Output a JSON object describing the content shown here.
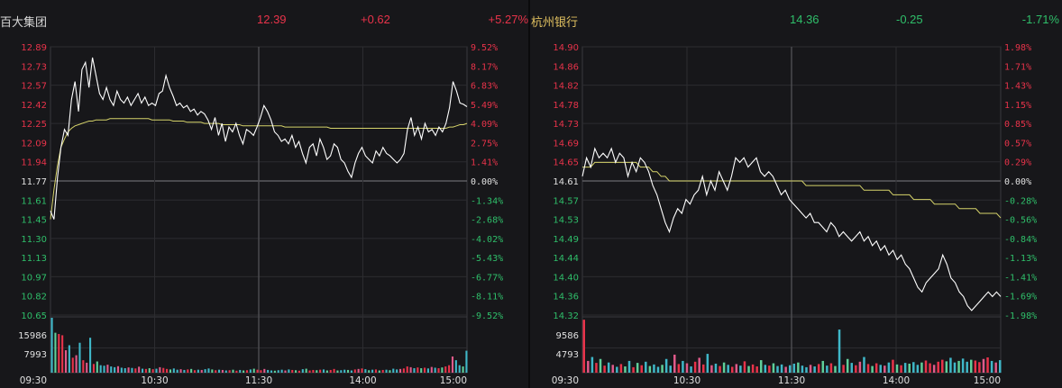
{
  "theme": {
    "up": "#e8334a",
    "down": "#2fbf6a",
    "flat": "#e0e0e0",
    "price_line": "#ffffff",
    "avg_line": "#d6d36a",
    "grid": "#2c2c30",
    "axis": "#3a3a3e"
  },
  "stocks": [
    {
      "name": "百大集团",
      "price": "12.39",
      "change": "+0.62",
      "change_pct": "+5.27%",
      "direction": "up"
    },
    {
      "name": "杭州银行",
      "price": "14.36",
      "change": "-0.25",
      "change_pct": "-1.71%",
      "direction": "down"
    }
  ],
  "chart_data": [
    {
      "type": "line",
      "subtype": "intraday-timeshare",
      "name": "百大集团",
      "prev_close": 11.77,
      "ylim": [
        10.65,
        12.89
      ],
      "y_ticks": [
        "12.89",
        "12.73",
        "12.57",
        "12.42",
        "12.25",
        "12.09",
        "11.94",
        "11.77",
        "11.61",
        "11.45",
        "11.30",
        "11.13",
        "10.97",
        "10.82",
        "10.65"
      ],
      "pct_ticks": [
        "9.52%",
        "8.17%",
        "6.83%",
        "5.49%",
        "4.09%",
        "2.75%",
        "1.41%",
        "0.00%",
        "-1.34%",
        "-2.68%",
        "-4.02%",
        "-5.43%",
        "-6.77%",
        "-8.11%",
        "-9.52%"
      ],
      "x_ticks": [
        "09:30",
        "10:30",
        "11:30",
        "14:00",
        "15:00"
      ],
      "volume_ticks": [
        "15986",
        "7993"
      ],
      "volume_max": 22000,
      "price_series": [
        11.52,
        11.45,
        11.8,
        12.05,
        12.2,
        12.15,
        12.45,
        12.6,
        12.35,
        12.7,
        12.76,
        12.55,
        12.8,
        12.65,
        12.5,
        12.45,
        12.55,
        12.45,
        12.4,
        12.52,
        12.45,
        12.42,
        12.47,
        12.4,
        12.45,
        12.5,
        12.42,
        12.47,
        12.4,
        12.42,
        12.4,
        12.5,
        12.52,
        12.65,
        12.55,
        12.48,
        12.4,
        12.42,
        12.38,
        12.4,
        12.35,
        12.37,
        12.32,
        12.35,
        12.33,
        12.28,
        12.2,
        12.3,
        12.15,
        12.25,
        12.1,
        12.22,
        12.18,
        12.25,
        12.15,
        12.08,
        12.2,
        12.18,
        12.15,
        12.22,
        12.3,
        12.4,
        12.35,
        12.28,
        12.18,
        12.15,
        12.1,
        12.12,
        12.08,
        12.15,
        12.05,
        12.1,
        12.0,
        11.92,
        12.05,
        12.08,
        11.98,
        12.12,
        12.05,
        11.95,
        11.98,
        12.08,
        12.05,
        11.95,
        11.92,
        11.85,
        11.8,
        11.92,
        12.0,
        12.05,
        11.98,
        11.95,
        11.92,
        12.02,
        11.98,
        12.05,
        12.0,
        11.98,
        11.95,
        11.92,
        11.95,
        12.0,
        12.2,
        12.3,
        12.15,
        12.22,
        12.12,
        12.25,
        12.18,
        12.2,
        12.15,
        12.22,
        12.18,
        12.25,
        12.38,
        12.6,
        12.52,
        12.42,
        12.41,
        12.39
      ],
      "avg_series": [
        11.45,
        11.7,
        11.9,
        12.05,
        12.12,
        12.18,
        12.21,
        12.23,
        12.24,
        12.25,
        12.26,
        12.27,
        12.27,
        12.28,
        12.28,
        12.28,
        12.28,
        12.29,
        12.29,
        12.29,
        12.29,
        12.29,
        12.29,
        12.29,
        12.29,
        12.29,
        12.29,
        12.29,
        12.29,
        12.28,
        12.28,
        12.28,
        12.28,
        12.28,
        12.28,
        12.27,
        12.27,
        12.27,
        12.27,
        12.26,
        12.26,
        12.26,
        12.26,
        12.26,
        12.25,
        12.25,
        12.25,
        12.25,
        12.25,
        12.24,
        12.24,
        12.24,
        12.24,
        12.24,
        12.24,
        12.23,
        12.23,
        12.23,
        12.23,
        12.23,
        12.23,
        12.23,
        12.23,
        12.23,
        12.23,
        12.23,
        12.23,
        12.22,
        12.22,
        12.22,
        12.22,
        12.22,
        12.22,
        12.22,
        12.22,
        12.22,
        12.22,
        12.22,
        12.22,
        12.22,
        12.21,
        12.21,
        12.21,
        12.21,
        12.21,
        12.21,
        12.21,
        12.21,
        12.21,
        12.21,
        12.21,
        12.21,
        12.21,
        12.21,
        12.21,
        12.21,
        12.21,
        12.21,
        12.21,
        12.21,
        12.21,
        12.21,
        12.21,
        12.21,
        12.21,
        12.21,
        12.21,
        12.21,
        12.21,
        12.21,
        12.21,
        12.21,
        12.21,
        12.21,
        12.22,
        12.22,
        12.23,
        12.24,
        12.24,
        12.25
      ],
      "volume_series": [
        22000,
        16000,
        15500,
        15000,
        9000,
        11000,
        6000,
        7000,
        12000,
        5000,
        4000,
        14000,
        3500,
        4500,
        3000,
        2800,
        3200,
        2500,
        2200,
        2600,
        2000,
        1800,
        2100,
        1900,
        1700,
        2400,
        1600,
        1500,
        1800,
        1400,
        1600,
        2200,
        1900,
        1500,
        1300,
        1700,
        1200,
        1400,
        1100,
        1300,
        1500,
        1000,
        1200,
        1100,
        1400,
        1700,
        1300,
        1000,
        1200,
        1100,
        900,
        1000,
        1200,
        800,
        1100,
        900,
        1000,
        1300,
        1600,
        1200,
        1000,
        1500,
        1100,
        900,
        800,
        1000,
        1200,
        900,
        1300,
        1100,
        1000,
        800,
        1400,
        1600,
        900,
        1100,
        1000,
        1200,
        1300,
        900,
        1100,
        1500,
        900,
        1000,
        1200,
        1100,
        900,
        1300,
        1500,
        1700,
        1400,
        1000,
        1200,
        1300,
        900,
        1100,
        1200,
        1000,
        1600,
        1300,
        1500,
        1700,
        2500,
        2200,
        1800,
        2100,
        1800,
        2000,
        1700,
        2300,
        2000,
        1800,
        2100,
        2500,
        3000,
        6500,
        5000,
        3000,
        2500,
        8800
      ]
    },
    {
      "type": "line",
      "subtype": "intraday-timeshare",
      "name": "杭州银行",
      "prev_close": 14.61,
      "ylim": [
        14.32,
        14.9
      ],
      "y_ticks": [
        "14.90",
        "14.86",
        "14.82",
        "14.78",
        "14.73",
        "14.69",
        "14.65",
        "14.61",
        "14.57",
        "14.53",
        "14.49",
        "14.44",
        "14.40",
        "14.36",
        "14.32"
      ],
      "pct_ticks": [
        "1.98%",
        "1.71%",
        "1.43%",
        "1.15%",
        "0.85%",
        "0.57%",
        "0.29%",
        "0.00%",
        "-0.28%",
        "-0.56%",
        "-0.84%",
        "-1.13%",
        "-1.41%",
        "-1.69%",
        "-1.98%"
      ],
      "x_ticks": [
        "09:30",
        "10:30",
        "11:30",
        "14:00",
        "15:00"
      ],
      "volume_ticks": [
        "9586",
        "4793"
      ],
      "volume_max": 14000,
      "price_series": [
        14.62,
        14.66,
        14.64,
        14.68,
        14.66,
        14.67,
        14.66,
        14.68,
        14.65,
        14.67,
        14.66,
        14.62,
        14.65,
        14.63,
        14.66,
        14.65,
        14.63,
        14.6,
        14.58,
        14.55,
        14.52,
        14.5,
        14.53,
        14.55,
        14.54,
        14.57,
        14.56,
        14.58,
        14.59,
        14.62,
        14.58,
        14.61,
        14.59,
        14.63,
        14.61,
        14.59,
        14.62,
        14.66,
        14.65,
        14.66,
        14.64,
        14.65,
        14.66,
        14.63,
        14.62,
        14.63,
        14.62,
        14.6,
        14.58,
        14.59,
        14.57,
        14.56,
        14.55,
        14.54,
        14.53,
        14.54,
        14.52,
        14.52,
        14.51,
        14.5,
        14.52,
        14.51,
        14.49,
        14.5,
        14.49,
        14.48,
        14.49,
        14.5,
        14.48,
        14.49,
        14.47,
        14.48,
        14.46,
        14.47,
        14.45,
        14.46,
        14.44,
        14.45,
        14.43,
        14.42,
        14.4,
        14.38,
        14.37,
        14.39,
        14.4,
        14.41,
        14.42,
        14.45,
        14.43,
        14.4,
        14.39,
        14.37,
        14.36,
        14.34,
        14.33,
        14.34,
        14.35,
        14.36,
        14.37,
        14.36,
        14.37,
        14.36
      ],
      "avg_series": [
        14.64,
        14.64,
        14.64,
        14.65,
        14.65,
        14.65,
        14.65,
        14.65,
        14.65,
        14.65,
        14.65,
        14.65,
        14.65,
        14.65,
        14.64,
        14.64,
        14.64,
        14.63,
        14.63,
        14.62,
        14.62,
        14.61,
        14.61,
        14.61,
        14.61,
        14.61,
        14.61,
        14.61,
        14.61,
        14.61,
        14.61,
        14.61,
        14.61,
        14.61,
        14.61,
        14.61,
        14.61,
        14.61,
        14.61,
        14.61,
        14.61,
        14.61,
        14.61,
        14.61,
        14.61,
        14.61,
        14.61,
        14.61,
        14.61,
        14.61,
        14.61,
        14.61,
        14.61,
        14.61,
        14.6,
        14.6,
        14.6,
        14.6,
        14.6,
        14.6,
        14.6,
        14.6,
        14.6,
        14.6,
        14.6,
        14.6,
        14.6,
        14.6,
        14.59,
        14.59,
        14.59,
        14.59,
        14.59,
        14.59,
        14.59,
        14.58,
        14.58,
        14.58,
        14.58,
        14.58,
        14.57,
        14.57,
        14.57,
        14.57,
        14.57,
        14.56,
        14.56,
        14.56,
        14.56,
        14.56,
        14.56,
        14.55,
        14.55,
        14.55,
        14.55,
        14.55,
        14.54,
        14.54,
        14.54,
        14.54,
        14.54,
        14.53
      ],
      "volume_series": [
        13500,
        3000,
        4000,
        2500,
        3500,
        1800,
        2600,
        2000,
        1500,
        2200,
        1600,
        3000,
        1400,
        2500,
        1900,
        2800,
        1700,
        2100,
        1500,
        2000,
        3500,
        1800,
        4600,
        2200,
        3000,
        2400,
        1600,
        2800,
        3800,
        2100,
        4800,
        1900,
        2300,
        1700,
        2600,
        2000,
        1500,
        2200,
        1800,
        2900,
        1700,
        2100,
        1600,
        3200,
        2000,
        1800,
        2400,
        1700,
        2100,
        1500,
        1900,
        2300,
        2600,
        1800,
        1400,
        2000,
        1600,
        2200,
        3000,
        1800,
        2400,
        1700,
        11000,
        2000,
        3500,
        2500,
        1900,
        2800,
        4000,
        2200,
        1700,
        2400,
        2000,
        1800,
        2600,
        3300,
        2100,
        1900,
        2500,
        2300,
        2700,
        2000,
        2600,
        3100,
        2400,
        2000,
        2800,
        3300,
        2900,
        3800,
        2600,
        3000,
        3600,
        2800,
        3300,
        3100,
        2700,
        3500,
        3900,
        3000,
        2600,
        3200
      ]
    }
  ]
}
